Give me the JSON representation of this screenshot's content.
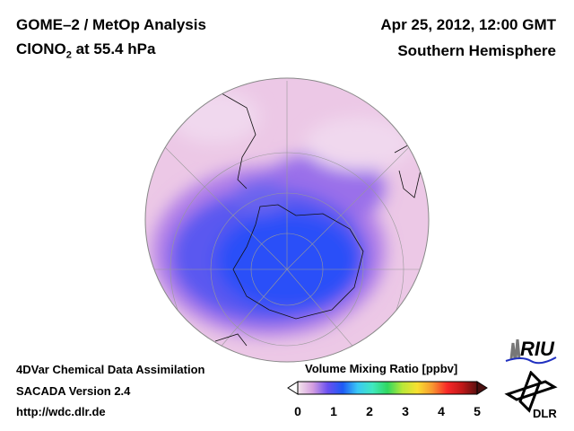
{
  "header": {
    "title_line1": "GOME–2 / MetOp Analysis",
    "title_line2_prefix": "ClONO",
    "title_line2_sub": "2",
    "title_line2_suffix": " at 55.4 hPa",
    "datetime": "Apr 25, 2012, 12:00 GMT",
    "region": "Southern Hemisphere"
  },
  "footer": {
    "line1": "4DVar Chemical Data Assimilation",
    "line2": "SACADA Version 2.4",
    "line3": "http://wdc.dlr.de"
  },
  "colorbar": {
    "title": "Volume Mixing Ratio [ppbv]",
    "ticks": [
      "0",
      "1",
      "2",
      "3",
      "4",
      "5"
    ],
    "range": [
      0,
      5
    ],
    "colors": [
      "#f4e6ec",
      "#d49ee0",
      "#6a50f0",
      "#1e5af5",
      "#3ac8f5",
      "#40e8c0",
      "#30d860",
      "#b8e838",
      "#f8e030",
      "#f89830",
      "#f82828",
      "#c01818",
      "#5a1010"
    ]
  },
  "logos": {
    "riu": "RIU",
    "dlr": "DLR"
  }
}
